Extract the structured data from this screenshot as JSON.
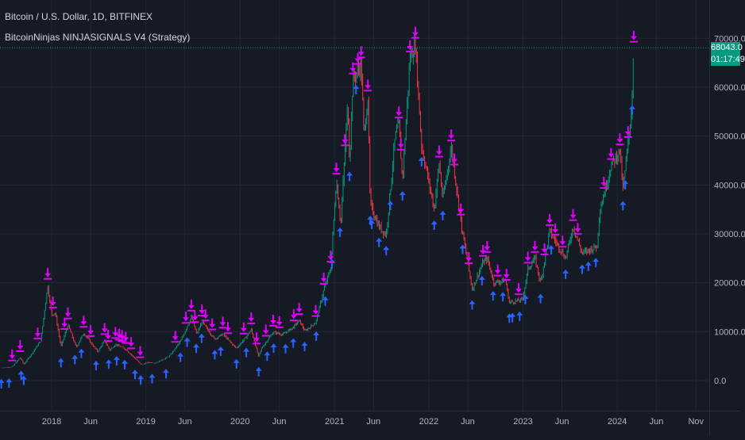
{
  "legend": {
    "symbol_line": "Bitcoin / U.S. Dollar, 1D, BITFINEX",
    "indicator_line": "BitcoinNinjas NINJASIGNALS V4 (Strategy)"
  },
  "last_price": {
    "value_label": "68043.0",
    "countdown": "01:17:49",
    "value": 68043
  },
  "colors": {
    "background": "#161a25",
    "grid": "#232733",
    "up_candle": "#089981",
    "down_candle": "#f23645",
    "buy_arrow": "#2962ff",
    "sell_arrow": "#e100ff",
    "last_price_tag": "#089981",
    "text": "#d1d4dc"
  },
  "chart_data": {
    "type": "candlestick",
    "title": "Bitcoin / U.S. Dollar, 1D, BITFINEX",
    "ylim": [
      -3000,
      75000
    ],
    "y_ticks": [
      {
        "value": 0,
        "label": "0.0"
      },
      {
        "value": 10000,
        "label": "10000.0"
      },
      {
        "value": 20000,
        "label": "20000.0"
      },
      {
        "value": 30000,
        "label": "30000.0"
      },
      {
        "value": 40000,
        "label": "40000.0"
      },
      {
        "value": 50000,
        "label": "50000.0"
      },
      {
        "value": 60000,
        "label": "60000.0"
      },
      {
        "value": 70000,
        "label": "70000.0"
      }
    ],
    "x_range": [
      "2017-06-15",
      "2024-11-25"
    ],
    "x_ticks": [
      {
        "date": "2018-01-01",
        "label": "2018"
      },
      {
        "date": "2018-06-01",
        "label": "Jun"
      },
      {
        "date": "2019-01-01",
        "label": "2019"
      },
      {
        "date": "2019-06-01",
        "label": "Jun"
      },
      {
        "date": "2020-01-01",
        "label": "2020"
      },
      {
        "date": "2020-06-01",
        "label": "Jun"
      },
      {
        "date": "2021-01-01",
        "label": "2021"
      },
      {
        "date": "2021-06-01",
        "label": "Jun"
      },
      {
        "date": "2022-01-01",
        "label": "2022"
      },
      {
        "date": "2022-06-01",
        "label": "Jun"
      },
      {
        "date": "2023-01-01",
        "label": "2023"
      },
      {
        "date": "2023-06-01",
        "label": "Jun"
      },
      {
        "date": "2024-01-01",
        "label": "2024"
      },
      {
        "date": "2024-06-01",
        "label": "Jun"
      },
      {
        "date": "2024-11-01",
        "label": "Nov"
      }
    ],
    "price_path": [
      [
        "2017-06-20",
        2600
      ],
      [
        "2017-08-01",
        2800
      ],
      [
        "2017-09-01",
        4700
      ],
      [
        "2017-09-15",
        3300
      ],
      [
        "2017-10-20",
        5800
      ],
      [
        "2017-11-20",
        8200
      ],
      [
        "2017-12-17",
        19500
      ],
      [
        "2017-12-31",
        13500
      ],
      [
        "2018-01-15",
        13800
      ],
      [
        "2018-02-06",
        6900
      ],
      [
        "2018-03-05",
        11400
      ],
      [
        "2018-04-06",
        6800
      ],
      [
        "2018-05-05",
        9700
      ],
      [
        "2018-06-28",
        5900
      ],
      [
        "2018-07-25",
        8200
      ],
      [
        "2018-08-14",
        6200
      ],
      [
        "2018-09-05",
        7400
      ],
      [
        "2018-10-15",
        6400
      ],
      [
        "2018-11-20",
        4500
      ],
      [
        "2018-12-15",
        3200
      ],
      [
        "2019-01-10",
        3700
      ],
      [
        "2019-02-08",
        3600
      ],
      [
        "2019-04-02",
        5000
      ],
      [
        "2019-05-15",
        8000
      ],
      [
        "2019-06-26",
        13000
      ],
      [
        "2019-07-17",
        9500
      ],
      [
        "2019-08-06",
        12000
      ],
      [
        "2019-09-24",
        8500
      ],
      [
        "2019-10-26",
        9500
      ],
      [
        "2019-12-17",
        6600
      ],
      [
        "2020-01-20",
        8600
      ],
      [
        "2020-02-13",
        10400
      ],
      [
        "2020-03-12",
        4900
      ],
      [
        "2020-03-25",
        6700
      ],
      [
        "2020-05-08",
        9900
      ],
      [
        "2020-06-15",
        9400
      ],
      [
        "2020-07-27",
        11000
      ],
      [
        "2020-08-17",
        12300
      ],
      [
        "2020-09-08",
        10100
      ],
      [
        "2020-10-20",
        11900
      ],
      [
        "2020-11-20",
        18500
      ],
      [
        "2020-12-17",
        23000
      ],
      [
        "2021-01-08",
        41000
      ],
      [
        "2021-01-25",
        32000
      ],
      [
        "2021-02-21",
        57000
      ],
      [
        "2021-02-28",
        45000
      ],
      [
        "2021-03-13",
        61500
      ],
      [
        "2021-04-14",
        64800
      ],
      [
        "2021-04-25",
        50000
      ],
      [
        "2021-05-10",
        58000
      ],
      [
        "2021-05-19",
        36000
      ],
      [
        "2021-06-22",
        31500
      ],
      [
        "2021-07-20",
        29800
      ],
      [
        "2021-08-23",
        49500
      ],
      [
        "2021-09-07",
        52500
      ],
      [
        "2021-09-21",
        41000
      ],
      [
        "2021-10-20",
        66000
      ],
      [
        "2021-11-10",
        68800
      ],
      [
        "2021-12-04",
        48000
      ],
      [
        "2022-01-22",
        35000
      ],
      [
        "2022-02-10",
        44500
      ],
      [
        "2022-02-24",
        37000
      ],
      [
        "2022-03-29",
        47800
      ],
      [
        "2022-05-09",
        31000
      ],
      [
        "2022-06-18",
        18700
      ],
      [
        "2022-07-30",
        24200
      ],
      [
        "2022-08-15",
        25000
      ],
      [
        "2022-09-10",
        20000
      ],
      [
        "2022-10-25",
        20500
      ],
      [
        "2022-11-09",
        16000
      ],
      [
        "2022-12-30",
        16500
      ],
      [
        "2023-01-20",
        22800
      ],
      [
        "2023-02-16",
        25000
      ],
      [
        "2023-03-10",
        20000
      ],
      [
        "2023-04-14",
        30500
      ],
      [
        "2023-06-15",
        25000
      ],
      [
        "2023-07-14",
        31500
      ],
      [
        "2023-08-18",
        26000
      ],
      [
        "2023-10-15",
        27500
      ],
      [
        "2023-10-24",
        34500
      ],
      [
        "2023-12-08",
        44000
      ],
      [
        "2024-01-11",
        47000
      ],
      [
        "2024-01-23",
        39000
      ],
      [
        "2024-02-12",
        48500
      ],
      [
        "2024-02-27",
        57000
      ],
      [
        "2024-03-05",
        68000
      ]
    ],
    "buy_signals": [
      "2017-06-20",
      "2017-07-20",
      "2017-09-05",
      "2017-09-15",
      "2018-02-06",
      "2018-04-01",
      "2018-04-26",
      "2018-06-22",
      "2018-08-10",
      "2018-09-10",
      "2018-10-11",
      "2018-11-20",
      "2018-12-12",
      "2019-01-25",
      "2019-03-20",
      "2019-05-15",
      "2019-06-10",
      "2019-07-15",
      "2019-08-05",
      "2019-09-25",
      "2019-10-18",
      "2019-12-18",
      "2020-01-25",
      "2020-03-13",
      "2020-04-15",
      "2020-05-10",
      "2020-06-25",
      "2020-07-25",
      "2020-09-07",
      "2020-10-22",
      "2020-11-26",
      "2020-12-22",
      "2021-01-22",
      "2021-02-28",
      "2021-03-25",
      "2021-05-19",
      "2021-05-25",
      "2021-06-22",
      "2021-07-20",
      "2021-08-05",
      "2021-09-21",
      "2021-12-04",
      "2022-01-22",
      "2022-02-24",
      "2022-05-12",
      "2022-06-18",
      "2022-07-26",
      "2022-09-07",
      "2022-10-15",
      "2022-11-09",
      "2022-11-21",
      "2022-12-19",
      "2023-01-10",
      "2023-03-10",
      "2023-04-20",
      "2023-06-15",
      "2023-08-18",
      "2023-09-11",
      "2023-10-10",
      "2024-01-23",
      "2024-02-01",
      "2024-02-28"
    ],
    "sell_signals": [
      "2017-08-01",
      "2017-09-01",
      "2017-11-08",
      "2017-12-17",
      "2018-01-06",
      "2018-02-20",
      "2018-03-05",
      "2018-05-05",
      "2018-06-01",
      "2018-07-25",
      "2018-08-08",
      "2018-09-05",
      "2018-09-20",
      "2018-10-01",
      "2018-10-15",
      "2018-11-05",
      "2018-12-10",
      "2019-04-25",
      "2019-06-05",
      "2019-06-26",
      "2019-07-10",
      "2019-08-06",
      "2019-08-20",
      "2019-09-15",
      "2019-10-26",
      "2019-11-15",
      "2020-01-15",
      "2020-02-13",
      "2020-03-05",
      "2020-04-10",
      "2020-05-08",
      "2020-06-01",
      "2020-07-27",
      "2020-08-17",
      "2020-10-20",
      "2020-11-20",
      "2020-12-17",
      "2021-01-08",
      "2021-02-10",
      "2021-03-13",
      "2021-04-01",
      "2021-04-14",
      "2021-05-10",
      "2021-09-07",
      "2021-09-15",
      "2021-10-20",
      "2021-11-10",
      "2022-02-10",
      "2022-03-29",
      "2022-04-10",
      "2022-05-05",
      "2022-06-05",
      "2022-07-30",
      "2022-08-15",
      "2022-09-25",
      "2022-10-29",
      "2022-12-15",
      "2023-01-20",
      "2023-02-16",
      "2023-03-25",
      "2023-04-14",
      "2023-05-06",
      "2023-06-03",
      "2023-07-14",
      "2023-08-01",
      "2023-11-10",
      "2023-12-08",
      "2024-01-11",
      "2024-02-12",
      "2024-03-05"
    ]
  }
}
